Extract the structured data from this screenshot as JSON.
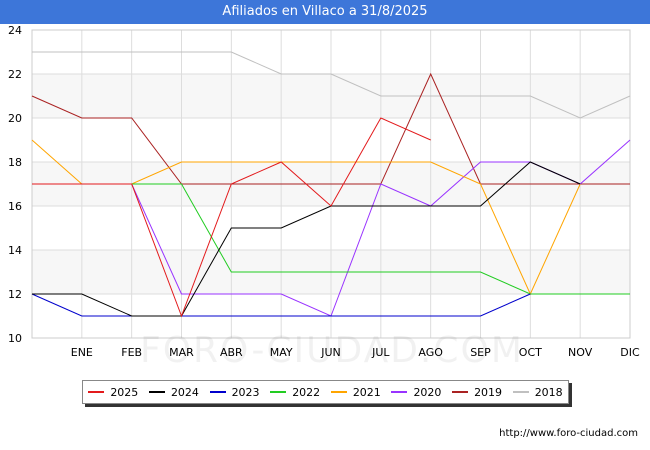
{
  "header": {
    "title": "Afiliados en Villaco a 31/8/2025"
  },
  "footer": {
    "source": "http://www.foro-ciudad.com",
    "watermark": "FORO-CIUDAD.COM"
  },
  "chart_data": {
    "type": "line",
    "title": "Afiliados en Villaco a 31/8/2025",
    "categories": [
      "",
      "ENE",
      "FEB",
      "MAR",
      "ABR",
      "MAY",
      "JUN",
      "JUL",
      "AGO",
      "SEP",
      "OCT",
      "NOV",
      "DIC"
    ],
    "ylim": [
      10,
      24
    ],
    "yticks": [
      10,
      12,
      14,
      16,
      18,
      20,
      22,
      24
    ],
    "grid": true,
    "legend_position": "bottom",
    "series": [
      {
        "name": "2025",
        "color": "#e31a1c",
        "values": [
          17,
          17,
          17,
          11,
          17,
          18,
          16,
          20,
          19,
          null,
          null,
          null,
          null
        ]
      },
      {
        "name": "2024",
        "color": "#000000",
        "values": [
          12,
          12,
          11,
          11,
          15,
          15,
          16,
          16,
          16,
          16,
          18,
          17,
          null
        ]
      },
      {
        "name": "2023",
        "color": "#0000cc",
        "values": [
          12,
          11,
          11,
          11,
          11,
          11,
          11,
          11,
          11,
          11,
          12,
          null,
          null
        ]
      },
      {
        "name": "2022",
        "color": "#22cc22",
        "values": [
          17,
          17,
          17,
          17,
          13,
          13,
          13,
          13,
          13,
          13,
          12,
          12,
          12
        ]
      },
      {
        "name": "2021",
        "color": "#ffa500",
        "values": [
          19,
          17,
          17,
          18,
          18,
          18,
          18,
          18,
          18,
          17,
          12,
          17,
          null
        ]
      },
      {
        "name": "2020",
        "color": "#9933ff",
        "values": [
          17,
          17,
          17,
          12,
          12,
          12,
          11,
          17,
          16,
          18,
          18,
          17,
          19
        ]
      },
      {
        "name": "2019",
        "color": "#aa2222",
        "values": [
          21,
          20,
          20,
          17,
          17,
          17,
          17,
          17,
          22,
          17,
          17,
          17,
          17
        ]
      },
      {
        "name": "2018",
        "color": "#c0c0c0",
        "values": [
          23,
          23,
          23,
          23,
          23,
          22,
          22,
          21,
          21,
          21,
          21,
          20,
          21
        ]
      }
    ]
  }
}
